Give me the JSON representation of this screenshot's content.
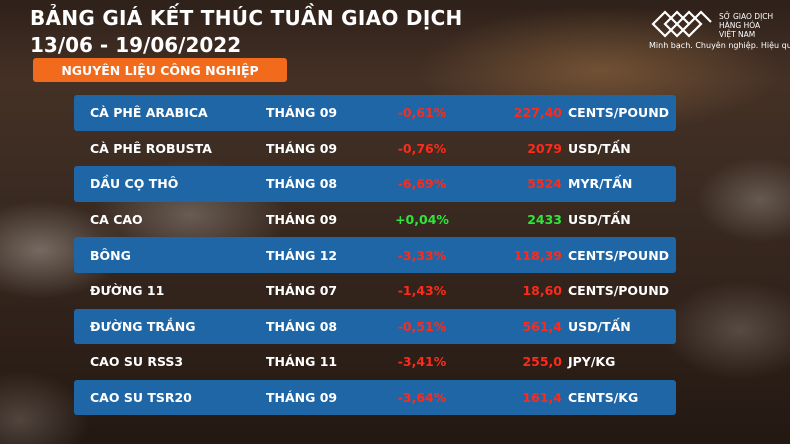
{
  "header": {
    "title": "BẢNG GIÁ KẾT THÚC TUẦN GIAO DỊCH",
    "date_range": "13/06 - 19/06/2022",
    "category": "NGUYÊN LIỆU CÔNG NGHIỆP"
  },
  "brand": {
    "name_line1": "SỞ GIAO DỊCH",
    "name_line2": "HÀNG HÓA",
    "name_line3": "VIỆT NAM",
    "tagline": "Minh bạch. Chuyên nghiệp. Hiệu quả",
    "logo_icon": "mxv-logo-icon"
  },
  "colors": {
    "accent_orange": "#f26a1b",
    "row_blue": "#1f66a6",
    "negative": "#ff2a1a",
    "positive": "#2fe53a"
  },
  "rows": [
    {
      "name": "CÀ PHÊ ARABICA",
      "month": "THÁNG 09",
      "change": "-0,61%",
      "price": "227,40",
      "unit": "CENTS/POUND",
      "direction": "down"
    },
    {
      "name": "CÀ PHÊ ROBUSTA",
      "month": "THÁNG 09",
      "change": "-0,76%",
      "price": "2079",
      "unit": "USD/TẤN",
      "direction": "down"
    },
    {
      "name": "DẦU CỌ THÔ",
      "month": "THÁNG 08",
      "change": "-6,69%",
      "price": "5524",
      "unit": "MYR/TẤN",
      "direction": "down"
    },
    {
      "name": "CA CAO",
      "month": "THÁNG 09",
      "change": "+0,04%",
      "price": "2433",
      "unit": "USD/TẤN",
      "direction": "up"
    },
    {
      "name": "BÔNG",
      "month": "THÁNG 12",
      "change": "-3,33%",
      "price": "118,39",
      "unit": "CENTS/POUND",
      "direction": "down"
    },
    {
      "name": "ĐƯỜNG 11",
      "month": "THÁNG 07",
      "change": "-1,43%",
      "price": "18,60",
      "unit": "CENTS/POUND",
      "direction": "down"
    },
    {
      "name": "ĐƯỜNG TRẮNG",
      "month": "THÁNG 08",
      "change": "-0,51%",
      "price": "561,4",
      "unit": "USD/TẤN",
      "direction": "down"
    },
    {
      "name": "CAO SU RSS3",
      "month": "THÁNG 11",
      "change": "-3,41%",
      "price": "255,0",
      "unit": "JPY/KG",
      "direction": "down"
    },
    {
      "name": "CAO SU TSR20",
      "month": "THÁNG 09",
      "change": "-3,64%",
      "price": "161,4",
      "unit": "CENTS/KG",
      "direction": "down"
    }
  ]
}
